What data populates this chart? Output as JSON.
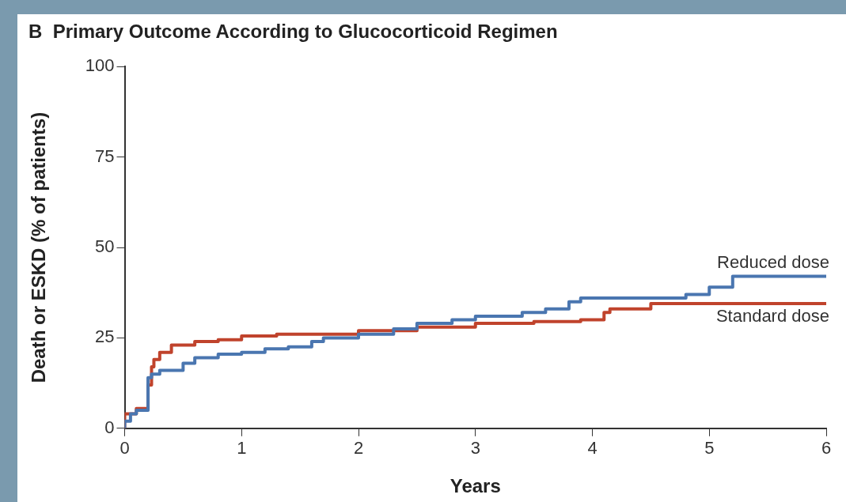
{
  "chart_data": {
    "type": "step",
    "title": "B  Primary Outcome According to Glucocorticoid Regimen",
    "xlabel": "Years",
    "ylabel": "Death or ESKD (% of patients)",
    "xlim": [
      0,
      6
    ],
    "xticks": [
      0,
      1,
      2,
      3,
      4,
      5,
      6
    ],
    "ylim": [
      0,
      100
    ],
    "yticks": [
      0,
      25,
      50,
      75,
      100
    ],
    "grid": false,
    "legend": false,
    "marker": "none",
    "line_style": "solid",
    "series": [
      {
        "name": "Reduced dose",
        "color": "#4a76b0",
        "x": [
          0,
          0.05,
          0.1,
          0.2,
          0.23,
          0.3,
          0.5,
          0.6,
          0.8,
          1.0,
          1.2,
          1.4,
          1.6,
          1.7,
          2.0,
          2.3,
          2.5,
          2.8,
          3.0,
          3.4,
          3.6,
          3.8,
          3.9,
          4.8,
          5.0,
          5.2,
          5.7,
          6.0
        ],
        "values": [
          0,
          2,
          4,
          5,
          14,
          15,
          16,
          18,
          19.5,
          20.5,
          21,
          22,
          22.5,
          24,
          25,
          26,
          27.5,
          29,
          30,
          31,
          32,
          33,
          35,
          36,
          37,
          39,
          42,
          42
        ]
      },
      {
        "name": "Standard dose",
        "color": "#c0432c",
        "x": [
          0,
          0.1,
          0.2,
          0.23,
          0.25,
          0.3,
          0.4,
          0.6,
          0.8,
          1.0,
          1.3,
          2.0,
          2.5,
          3.0,
          3.5,
          3.9,
          4.1,
          4.15,
          4.5,
          4.8,
          6.0
        ],
        "values": [
          0,
          4,
          5.5,
          12,
          17,
          19,
          21,
          23,
          24,
          24.5,
          25.5,
          26,
          27,
          28,
          29,
          29.5,
          30,
          32,
          33,
          34.5,
          34.5
        ]
      }
    ]
  }
}
